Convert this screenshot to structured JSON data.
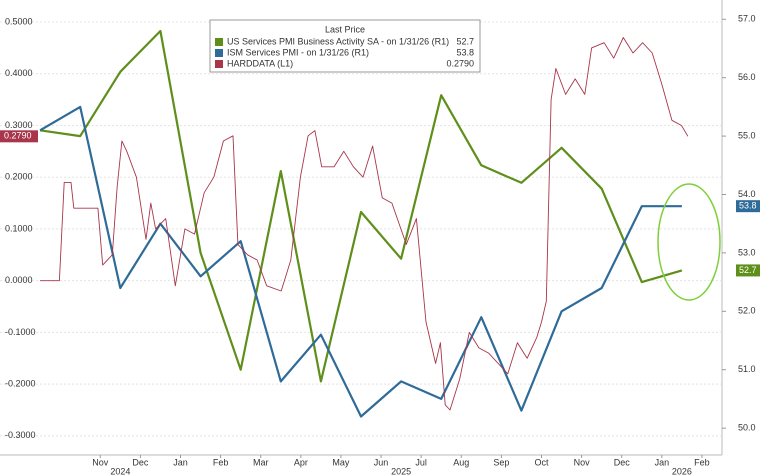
{
  "chart_data": {
    "type": "line",
    "xlim": [
      -1,
      17
    ],
    "xticks": [
      {
        "value": 1.5,
        "label": "Nov"
      },
      {
        "value": 2.5,
        "label": "Dec"
      },
      {
        "value": 3.5,
        "label": "Jan"
      },
      {
        "value": 4.5,
        "label": "Feb"
      },
      {
        "value": 5.5,
        "label": "Mar"
      },
      {
        "value": 6.5,
        "label": "Apr"
      },
      {
        "value": 7.5,
        "label": "May"
      },
      {
        "value": 8.5,
        "label": "Jun"
      },
      {
        "value": 9.5,
        "label": "Jul"
      },
      {
        "value": 10.5,
        "label": "Aug"
      },
      {
        "value": 11.5,
        "label": "Sep"
      },
      {
        "value": 12.5,
        "label": "Oct"
      },
      {
        "value": 13.5,
        "label": "Nov"
      },
      {
        "value": 14.5,
        "label": "Dec"
      },
      {
        "value": 15.5,
        "label": "Jan"
      },
      {
        "value": 16.5,
        "label": "Feb"
      }
    ],
    "year_ticks": [
      {
        "value": 2,
        "label": "2024"
      },
      {
        "value": 9,
        "label": "2025"
      },
      {
        "value": 16,
        "label": "2026"
      }
    ],
    "ylim": [
      -0.337,
      0.5425
    ],
    "yticks": [
      {
        "value": -0.3,
        "label": "-0.3000"
      },
      {
        "value": -0.2,
        "label": "-0.2000"
      },
      {
        "value": -0.1,
        "label": "-0.1000"
      },
      {
        "value": 0,
        "label": "0.0000"
      },
      {
        "value": 0.1,
        "label": "0.1000"
      },
      {
        "value": 0.2,
        "label": "0.2000"
      },
      {
        "value": 0.3,
        "label": "0.3000"
      },
      {
        "value": 0.4,
        "label": "0.4000"
      },
      {
        "value": 0.5,
        "label": "0.5000"
      }
    ],
    "y2lim": [
      49.54,
      57.33
    ],
    "y2ticks": [
      {
        "value": 50,
        "label": "50.0"
      },
      {
        "value": 51,
        "label": "51.0"
      },
      {
        "value": 52,
        "label": "52.0"
      },
      {
        "value": 53,
        "label": "53.0"
      },
      {
        "value": 54,
        "label": "54.0"
      },
      {
        "value": 55,
        "label": "55.0"
      },
      {
        "value": 56,
        "label": "56.0"
      },
      {
        "value": 57,
        "label": "57.0"
      }
    ],
    "grid": true,
    "legend_title": "Last Price",
    "series": [
      {
        "name": "US Services PMI Business Activity SA - on 1/31/26 (R1)",
        "color": "#5e8f1a",
        "axis": "y2",
        "last": 52.7,
        "x": [
          0,
          1,
          2,
          3,
          4,
          5,
          6,
          7,
          8,
          9,
          10,
          11,
          12,
          13,
          14,
          15,
          16
        ],
        "values": [
          55.1,
          55.0,
          56.1,
          56.8,
          53.0,
          51.0,
          54.4,
          50.8,
          53.7,
          52.9,
          55.7,
          54.5,
          54.2,
          54.8,
          54.1,
          52.5,
          52.7
        ]
      },
      {
        "name": "ISM Services PMI - on 1/31/26 (R1)",
        "color": "#2f6b98",
        "axis": "y2",
        "last": 53.8,
        "x": [
          0,
          1,
          2,
          3,
          4,
          5,
          6,
          7,
          8,
          9,
          10,
          11,
          12,
          13,
          14,
          15,
          16
        ],
        "values": [
          55.1,
          55.5,
          52.4,
          53.5,
          52.6,
          53.2,
          50.8,
          51.6,
          50.2,
          50.8,
          50.5,
          51.9,
          50.3,
          52.0,
          52.4,
          53.8,
          53.8
        ]
      },
      {
        "name": "HARDDATA (L1)",
        "color": "#a8354a",
        "axis": "y",
        "last": {
          "value": 0.279,
          "label": "0.2790"
        },
        "x": [
          0,
          0.48,
          0.6,
          0.77,
          0.84,
          1.44,
          1.56,
          1.8,
          1.92,
          2.04,
          2.16,
          2.4,
          2.64,
          2.76,
          2.88,
          3.13,
          3.37,
          3.61,
          3.85,
          4.09,
          4.33,
          4.57,
          4.81,
          4.93,
          5.17,
          5.41,
          5.65,
          6.01,
          6.25,
          6.49,
          6.68,
          6.85,
          7.02,
          7.33,
          7.57,
          7.81,
          8.05,
          8.29,
          8.53,
          8.77,
          9.13,
          9.38,
          9.62,
          9.86,
          9.98,
          10.1,
          10.22,
          10.46,
          10.7,
          10.94,
          11.18,
          11.42,
          11.66,
          11.9,
          12.14,
          12.38,
          12.5,
          12.62,
          12.74,
          12.86,
          13.1,
          13.34,
          13.58,
          13.75,
          14.06,
          14.3,
          14.54,
          14.78,
          15.02,
          15.26,
          15.5,
          15.75,
          15.99,
          16.15
        ],
        "values": [
          0,
          0,
          0.19,
          0.19,
          0.14,
          0.14,
          0.03,
          0.05,
          0.18,
          0.27,
          0.25,
          0.2,
          0.08,
          0.15,
          0.1,
          0.12,
          -0.01,
          0.1,
          0.09,
          0.17,
          0.2,
          0.27,
          0.28,
          0.07,
          0.05,
          0.04,
          -0.01,
          -0.02,
          0.04,
          0.2,
          0.28,
          0.29,
          0.22,
          0.22,
          0.25,
          0.22,
          0.2,
          0.26,
          0.16,
          0.15,
          0.07,
          0.12,
          -0.08,
          -0.16,
          -0.12,
          -0.24,
          -0.25,
          -0.19,
          -0.1,
          -0.13,
          -0.14,
          -0.16,
          -0.18,
          -0.12,
          -0.15,
          -0.11,
          -0.08,
          -0.04,
          0.35,
          0.41,
          0.36,
          0.39,
          0.36,
          0.45,
          0.46,
          0.43,
          0.47,
          0.44,
          0.46,
          0.44,
          0.38,
          0.31,
          0.3,
          0.279
        ]
      }
    ]
  }
}
